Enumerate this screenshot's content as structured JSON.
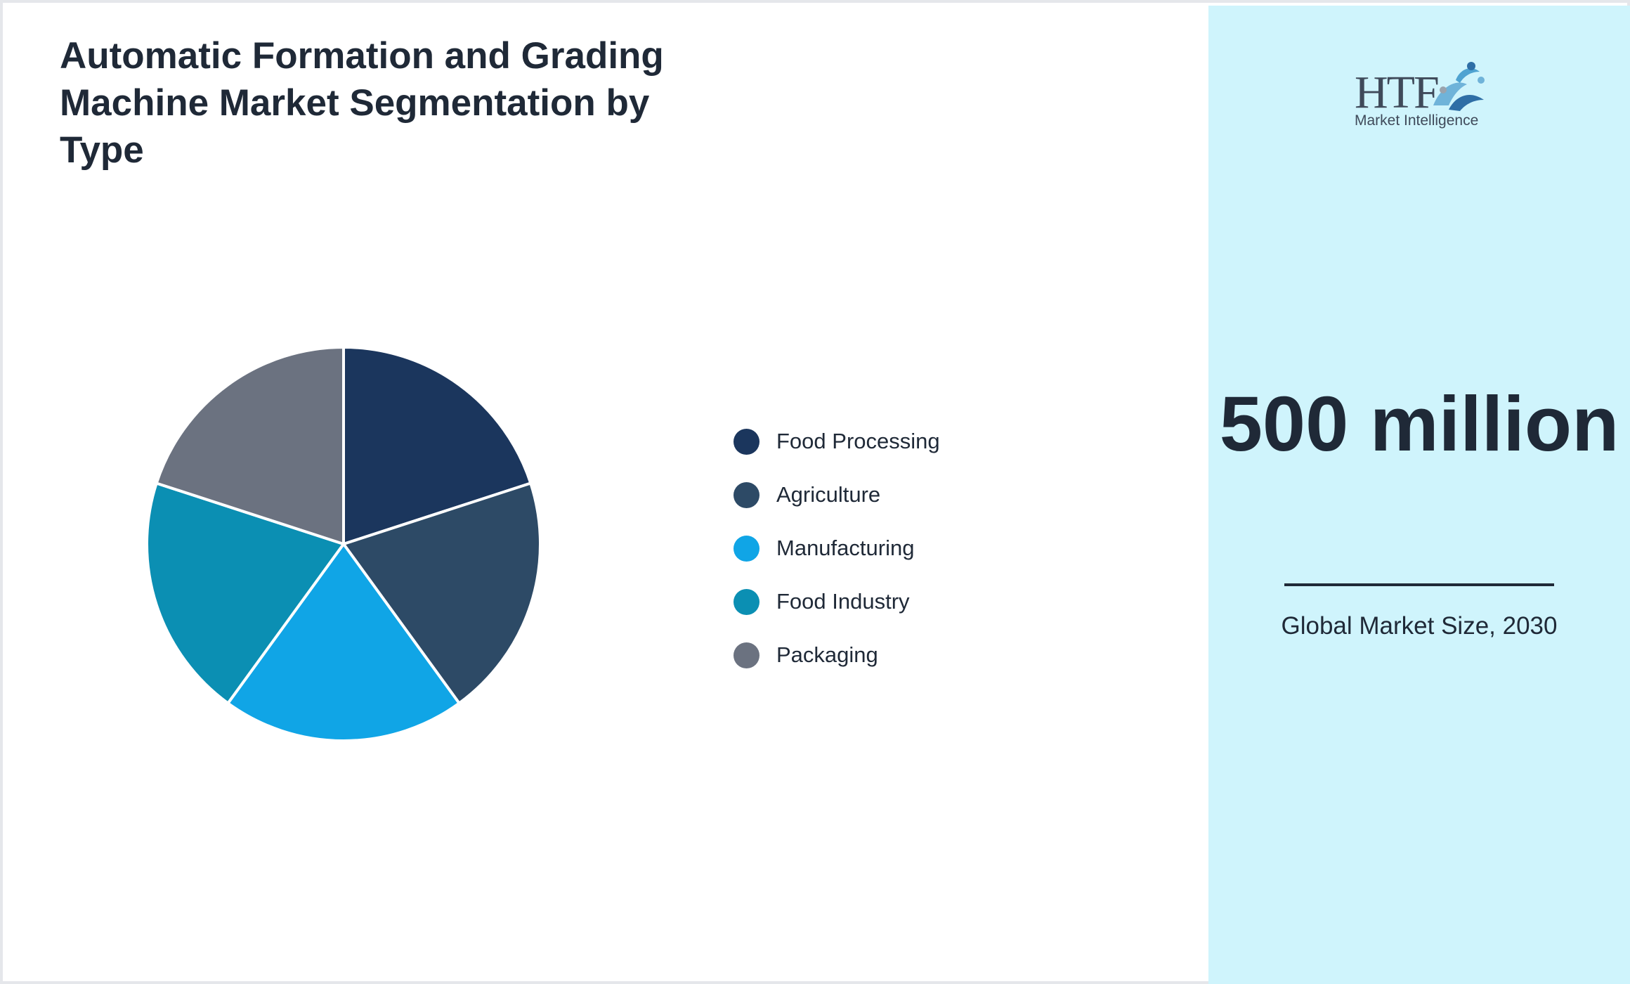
{
  "chart_data": {
    "type": "pie",
    "title": "Automatic Formation and Grading Machine Market Segmentation by Type",
    "categories": [
      "Food Processing",
      "Agriculture",
      "Manufacturing",
      "Food Industry",
      "Packaging"
    ],
    "values": [
      20,
      20,
      20,
      20,
      20
    ],
    "colors": [
      "#1b365d",
      "#2d4a66",
      "#10a5e6",
      "#0b8fb3",
      "#6b7280"
    ],
    "slice_stroke_color": "#ffffff",
    "legend_position": "right"
  },
  "legend": {
    "items": [
      {
        "label": "Food Processing",
        "color": "#1b365d"
      },
      {
        "label": "Agriculture",
        "color": "#2d4a66"
      },
      {
        "label": "Manufacturing",
        "color": "#10a5e6"
      },
      {
        "label": "Food Industry",
        "color": "#0b8fb3"
      },
      {
        "label": "Packaging",
        "color": "#6b7280"
      }
    ]
  },
  "sidebar": {
    "background_color": "#cff4fc",
    "logo": {
      "brand": "HTF",
      "tagline": "Market Intelligence",
      "icon": "htf-logo-icon"
    },
    "stat": {
      "value": "500 million",
      "caption": "Global Market Size, 2030"
    }
  }
}
